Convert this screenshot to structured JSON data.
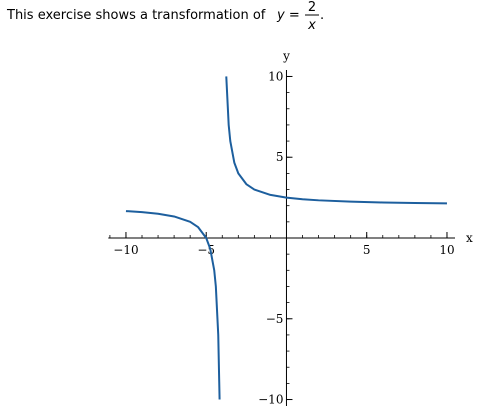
{
  "question": {
    "prompt": "This exercise shows a transformation of",
    "lhs": "y =",
    "numerator": "2",
    "denominator": "x",
    "end": "."
  },
  "chart_data": {
    "type": "line",
    "x_label": "x",
    "y_label": "y",
    "x": [
      -10,
      -9,
      -8,
      -7,
      -6,
      -5.5,
      -5,
      -4.75,
      -4.5,
      -4.4,
      -4.25,
      -4.1667,
      -4,
      -3.75,
      -3.6,
      -3.5,
      -3.25,
      -3,
      -2.5,
      -2,
      -1,
      0,
      1,
      2,
      4,
      6,
      8,
      10
    ],
    "series": [
      {
        "color": "#1d5f9e",
        "values": [
          1.667,
          1.6,
          1.5,
          1.333,
          1,
          0.667,
          0,
          -0.667,
          -2,
          -3,
          -6,
          -10,
          null,
          10,
          7,
          6,
          4.667,
          4,
          3.333,
          3,
          2.667,
          2.5,
          2.4,
          2.333,
          2.25,
          2.2,
          2.167,
          2.143
        ]
      }
    ],
    "xlim": [
      -11.1,
      10.5
    ],
    "ylim": [
      -10.4,
      10.4
    ],
    "xticks": [
      {
        "value": -10,
        "label": "−10"
      },
      {
        "value": -5,
        "label": "−5"
      },
      5,
      10
    ],
    "yticks": [
      {
        "value": -10,
        "label": "−10"
      },
      {
        "value": -5,
        "label": "−5"
      },
      5,
      10
    ],
    "minor_tick_step": 1
  }
}
